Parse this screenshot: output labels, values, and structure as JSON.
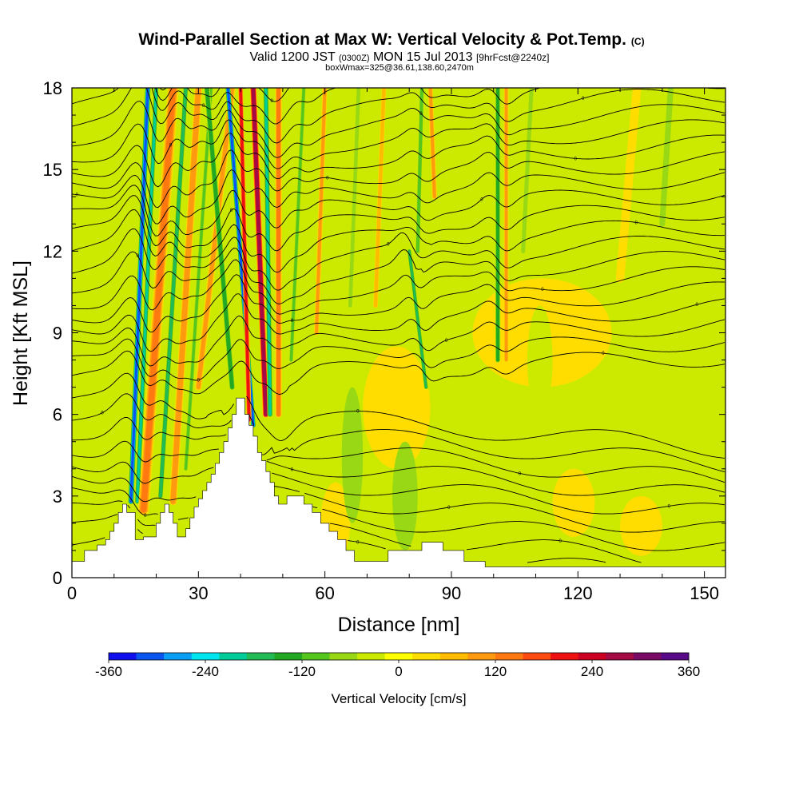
{
  "chart_data": {
    "type": "heatmap",
    "title": "Wind-Parallel Section at Max W: Vertical Velocity & Pot.Temp.",
    "title_mark": "(C)",
    "subtitle": {
      "lead": "Valid 1200 JST",
      "utc": "(0300Z)",
      "date": "MON 15 Jul 2013",
      "fcst": "[9hrFcst@2240z]"
    },
    "boxline": "boxWmax=325@36.61,138.60,2470m",
    "xlabel": "Distance [nm]",
    "ylabel": "Height [Kft MSL]",
    "xlim": [
      0,
      155
    ],
    "ylim": [
      0,
      18
    ],
    "x_ticks": [
      "0",
      "30",
      "60",
      "90",
      "120",
      "150"
    ],
    "y_ticks": [
      "0",
      "3",
      "6",
      "9",
      "12",
      "15",
      "18"
    ],
    "colorbar": {
      "title": "Vertical Velocity [cm/s]",
      "range": [
        -360,
        360
      ],
      "labels": [
        "-360",
        "-240",
        "-120",
        "0",
        "120",
        "240",
        "360"
      ],
      "colors": [
        "#1010ee",
        "#0a55f0",
        "#0a9ef4",
        "#00e6f0",
        "#00cc99",
        "#22bb55",
        "#22a822",
        "#55c61e",
        "#99d814",
        "#ccea00",
        "#ffff00",
        "#ffdd00",
        "#ffbb00",
        "#ff9a10",
        "#ff7810",
        "#ff4a10",
        "#ee1111",
        "#cc0022",
        "#a40a44",
        "#7a0a66",
        "#580a88"
      ]
    },
    "terrain": [
      [
        0,
        0.6
      ],
      [
        3,
        0.6
      ],
      [
        3,
        1.0
      ],
      [
        6,
        1.0
      ],
      [
        6,
        1.2
      ],
      [
        8,
        1.2
      ],
      [
        8,
        1.4
      ],
      [
        9,
        1.4
      ],
      [
        9,
        1.7
      ],
      [
        10,
        1.7
      ],
      [
        10,
        2.0
      ],
      [
        11,
        2.0
      ],
      [
        11,
        2.4
      ],
      [
        12,
        2.4
      ],
      [
        12,
        2.7
      ],
      [
        13,
        2.7
      ],
      [
        13,
        2.4
      ],
      [
        15,
        2.4
      ],
      [
        15,
        1.4
      ],
      [
        17,
        1.4
      ],
      [
        17,
        1.5
      ],
      [
        20,
        1.5
      ],
      [
        20,
        2.0
      ],
      [
        21,
        2.0
      ],
      [
        21,
        2.4
      ],
      [
        22,
        2.4
      ],
      [
        22,
        2.7
      ],
      [
        23,
        2.7
      ],
      [
        23,
        2.4
      ],
      [
        24,
        2.4
      ],
      [
        24,
        2.0
      ],
      [
        25,
        2.0
      ],
      [
        25,
        1.5
      ],
      [
        27,
        1.5
      ],
      [
        27,
        1.8
      ],
      [
        28,
        1.8
      ],
      [
        28,
        2.2
      ],
      [
        29,
        2.2
      ],
      [
        29,
        2.6
      ],
      [
        30,
        2.6
      ],
      [
        30,
        2.9
      ],
      [
        31,
        2.9
      ],
      [
        31,
        3.2
      ],
      [
        32,
        3.2
      ],
      [
        32,
        3.5
      ],
      [
        33,
        3.5
      ],
      [
        33,
        3.8
      ],
      [
        34,
        3.8
      ],
      [
        34,
        4.2
      ],
      [
        35,
        4.2
      ],
      [
        35,
        4.6
      ],
      [
        36,
        4.6
      ],
      [
        36,
        5.0
      ],
      [
        37,
        5.0
      ],
      [
        37,
        5.5
      ],
      [
        38,
        5.5
      ],
      [
        38,
        6.0
      ],
      [
        39,
        6.0
      ],
      [
        39,
        6.6
      ],
      [
        41,
        6.6
      ],
      [
        41,
        6.0
      ],
      [
        42,
        6.0
      ],
      [
        42,
        5.6
      ],
      [
        43,
        5.6
      ],
      [
        43,
        5.2
      ],
      [
        44,
        5.2
      ],
      [
        44,
        4.6
      ],
      [
        45,
        4.6
      ],
      [
        45,
        4.3
      ],
      [
        46,
        4.3
      ],
      [
        46,
        3.9
      ],
      [
        47,
        3.9
      ],
      [
        47,
        3.5
      ],
      [
        48,
        3.5
      ],
      [
        48,
        3.0
      ],
      [
        49,
        3.0
      ],
      [
        49,
        2.7
      ],
      [
        51,
        2.7
      ],
      [
        51,
        3.0
      ],
      [
        55,
        3.0
      ],
      [
        55,
        2.7
      ],
      [
        57,
        2.7
      ],
      [
        57,
        2.4
      ],
      [
        59,
        2.4
      ],
      [
        59,
        2.0
      ],
      [
        61,
        2.0
      ],
      [
        61,
        1.7
      ],
      [
        63,
        1.7
      ],
      [
        63,
        1.4
      ],
      [
        65,
        1.4
      ],
      [
        65,
        1.0
      ],
      [
        67,
        1.0
      ],
      [
        67,
        0.6
      ],
      [
        75,
        0.6
      ],
      [
        75,
        1.0
      ],
      [
        83,
        1.0
      ],
      [
        83,
        1.3
      ],
      [
        88,
        1.3
      ],
      [
        88,
        1.0
      ],
      [
        93,
        1.0
      ],
      [
        93,
        0.6
      ],
      [
        98,
        0.6
      ],
      [
        98,
        0.4
      ],
      [
        155,
        0.4
      ]
    ],
    "plumes": [
      {
        "bottom": [
          14,
          2.8
        ],
        "top": [
          18,
          18
        ],
        "w": -300,
        "width": 1.4
      },
      {
        "bottom": [
          15.5,
          2.8
        ],
        "top": [
          20,
          18
        ],
        "w": -200,
        "width": 1.2
      },
      {
        "bottom": [
          17,
          2.5
        ],
        "top": [
          24,
          18
        ],
        "w": 140,
        "width": 2.6
      },
      {
        "bottom": [
          21,
          3
        ],
        "top": [
          27,
          18
        ],
        "w": -180,
        "width": 1.2
      },
      {
        "bottom": [
          24,
          2.8
        ],
        "top": [
          30,
          18
        ],
        "w": 110,
        "width": 1.8
      },
      {
        "bottom": [
          27,
          4
        ],
        "top": [
          33,
          18
        ],
        "w": -100,
        "width": 1.1
      },
      {
        "bottom": [
          30,
          7
        ],
        "top": [
          38,
          18
        ],
        "w": 90,
        "width": 1.6
      },
      {
        "bottom": [
          38,
          7
        ],
        "top": [
          32,
          18
        ],
        "w": -150,
        "width": 1.4
      },
      {
        "bottom": [
          43,
          5.6
        ],
        "top": [
          37,
          18
        ],
        "w": -320,
        "width": 1.2
      },
      {
        "bottom": [
          42,
          5.8
        ],
        "top": [
          40,
          18
        ],
        "w": 220,
        "width": 1.2
      },
      {
        "bottom": [
          46,
          6
        ],
        "top": [
          43,
          18
        ],
        "w": 290,
        "width": 1.6
      },
      {
        "bottom": [
          47,
          6
        ],
        "top": [
          46,
          18
        ],
        "w": -200,
        "width": 1.3
      },
      {
        "bottom": [
          49,
          6
        ],
        "top": [
          49,
          18
        ],
        "w": 140,
        "width": 1.6
      },
      {
        "bottom": [
          52,
          8
        ],
        "top": [
          55,
          18
        ],
        "w": -100,
        "width": 1.1
      },
      {
        "bottom": [
          58,
          9
        ],
        "top": [
          60,
          18
        ],
        "w": 90,
        "width": 1.2
      },
      {
        "bottom": [
          66,
          10
        ],
        "top": [
          68,
          18
        ],
        "w": -60,
        "width": 1.3
      },
      {
        "bottom": [
          72,
          10
        ],
        "top": [
          74,
          18
        ],
        "w": 80,
        "width": 1.1
      },
      {
        "bottom": [
          84,
          7
        ],
        "top": [
          80,
          12
        ],
        "w": -170,
        "width": 1.0
      },
      {
        "bottom": [
          82,
          12
        ],
        "top": [
          83,
          18
        ],
        "w": -110,
        "width": 1.1
      },
      {
        "bottom": [
          86,
          14
        ],
        "top": [
          85,
          18
        ],
        "w": 90,
        "width": 1.2
      },
      {
        "bottom": [
          101,
          8
        ],
        "top": [
          101,
          18
        ],
        "w": -150,
        "width": 1.2
      },
      {
        "bottom": [
          103,
          8
        ],
        "top": [
          103,
          18
        ],
        "w": 90,
        "width": 1.1
      },
      {
        "bottom": [
          107,
          12
        ],
        "top": [
          109,
          18
        ],
        "w": -70,
        "width": 1.4
      },
      {
        "bottom": [
          120,
          12
        ],
        "top": [
          122,
          18
        ],
        "w": -50,
        "width": 1.5
      },
      {
        "bottom": [
          140,
          13
        ],
        "top": [
          142,
          18
        ],
        "w": -60,
        "width": 2.0
      },
      {
        "bottom": [
          130,
          11
        ],
        "top": [
          134,
          18
        ],
        "w": 40,
        "width": 2.0
      }
    ],
    "blobs": [
      {
        "x": [
          69,
          85
        ],
        "y": [
          4,
          8.5
        ],
        "w": 40
      },
      {
        "x": [
          95,
          128
        ],
        "y": [
          7,
          11
        ],
        "w": 40
      },
      {
        "x": [
          114,
          124
        ],
        "y": [
          1.5,
          4
        ],
        "w": 40
      },
      {
        "x": [
          130,
          140
        ],
        "y": [
          0.8,
          3
        ],
        "w": 40
      },
      {
        "x": [
          59,
          66
        ],
        "y": [
          0.6,
          3.5
        ],
        "w": 40
      },
      {
        "x": [
          76,
          82
        ],
        "y": [
          1,
          5
        ],
        "w": -70
      },
      {
        "x": [
          64,
          69
        ],
        "y": [
          2,
          7
        ],
        "w": -70
      },
      {
        "x": [
          108,
          114
        ],
        "y": [
          6,
          10
        ],
        "w": -50
      },
      {
        "x": [
          146,
          155
        ],
        "y": [
          1,
          10
        ],
        "w": -50
      },
      {
        "x": [
          0,
          5
        ],
        "y": [
          1,
          9
        ],
        "w": -50
      }
    ],
    "contour_labels": [
      "0",
      "0",
      "0",
      "0",
      "0",
      "0",
      "0",
      "0",
      "0",
      "0",
      "0",
      "0",
      "0",
      "0",
      "0",
      "0",
      "0",
      "0",
      "0",
      "0",
      "0",
      "0",
      "0",
      "0",
      "0",
      "0",
      "0",
      "0",
      "0",
      "0"
    ]
  }
}
